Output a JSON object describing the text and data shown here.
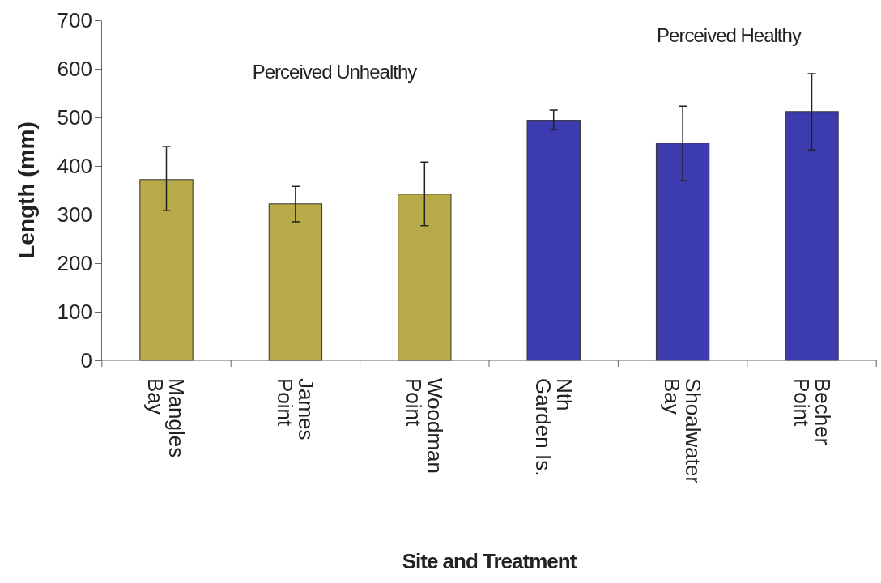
{
  "chart_data": {
    "type": "bar",
    "xlabel": "Site and Treatment",
    "ylabel": "Length (mm)",
    "categories": [
      "Mangles Bay",
      "James Point",
      "Woodman Point",
      "Nth Garden Is.",
      "Shoalwater Bay",
      "Becher Point"
    ],
    "values": [
      372,
      322,
      342,
      494,
      447,
      512
    ],
    "errors": [
      [
        308,
        440
      ],
      [
        285,
        358
      ],
      [
        277,
        408
      ],
      [
        475,
        515
      ],
      [
        370,
        523
      ],
      [
        433,
        590
      ]
    ],
    "colors": [
      "#b8aa48",
      "#b8aa48",
      "#b8aa48",
      "#3c3cae",
      "#3c3cae",
      "#3c3cae"
    ],
    "ylim": [
      0,
      700
    ],
    "yticks": [
      0,
      100,
      200,
      300,
      400,
      500,
      600,
      700
    ],
    "grid": false,
    "annotations": [
      "Perceived Unhealthy",
      "Perceived Healthy"
    ]
  }
}
